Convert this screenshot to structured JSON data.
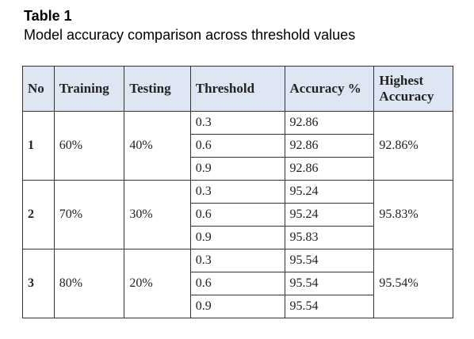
{
  "caption": {
    "label": "Table 1",
    "title": "Model accuracy comparison across threshold values"
  },
  "table": {
    "headers": {
      "no": "No",
      "training": "Training",
      "testing": "Testing",
      "threshold": "Threshold",
      "accuracy": "Accuracy %",
      "highest": "Highest Accuracy"
    },
    "groups": [
      {
        "no": "1",
        "training": "60%",
        "testing": "40%",
        "highest": "92.86%",
        "rows": [
          {
            "threshold": "0.3",
            "accuracy": "92.86"
          },
          {
            "threshold": "0.6",
            "accuracy": "92.86"
          },
          {
            "threshold": "0.9",
            "accuracy": "92.86"
          }
        ]
      },
      {
        "no": "2",
        "training": "70%",
        "testing": "30%",
        "highest": "95.83%",
        "rows": [
          {
            "threshold": "0.3",
            "accuracy": "95.24"
          },
          {
            "threshold": "0.6",
            "accuracy": "95.24"
          },
          {
            "threshold": "0.9",
            "accuracy": "95.83"
          }
        ]
      },
      {
        "no": "3",
        "training": "80%",
        "testing": "20%",
        "highest": "95.54%",
        "rows": [
          {
            "threshold": "0.3",
            "accuracy": "95.54"
          },
          {
            "threshold": "0.6",
            "accuracy": "95.54"
          },
          {
            "threshold": "0.9",
            "accuracy": "95.54"
          }
        ]
      }
    ]
  }
}
